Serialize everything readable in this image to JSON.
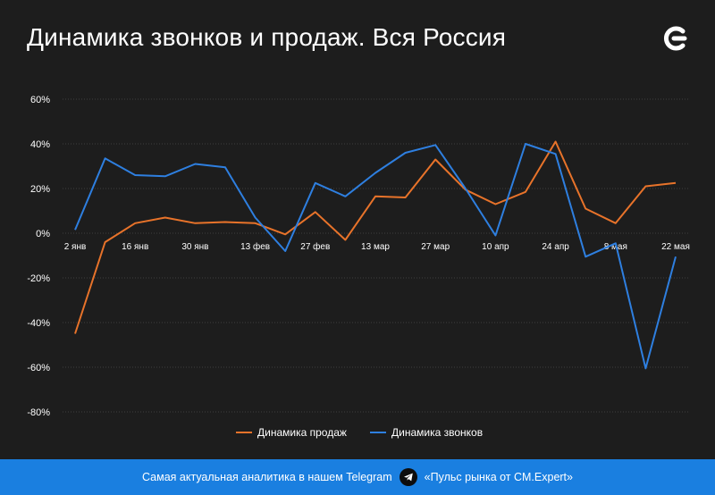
{
  "header": {
    "title": "Динамика звонков и продаж. Вся Россия",
    "logo_icon": "cmexpert-logo-icon"
  },
  "footer": {
    "text_left": "Самая актуальная аналитика в нашем Telegram",
    "icon": "telegram-icon",
    "text_right": "«Пульс рынка от CM.Expert»"
  },
  "colors": {
    "sales": "#e8732a",
    "calls": "#2e7fe0",
    "background": "#1d1d1d",
    "footer": "#1a7fe0"
  },
  "chart_data": {
    "type": "line",
    "title": "Динамика звонков и продаж. Вся Россия",
    "xlabel": "",
    "ylabel": "",
    "ylim": [
      -80,
      60
    ],
    "grid": true,
    "legend_position": "bottom-center",
    "x_ticks": [
      "2 янв",
      "16 янв",
      "30 янв",
      "13 фев",
      "27 фев",
      "13 мар",
      "27 мар",
      "10 апр",
      "24 апр",
      "8 мая",
      "22 мая"
    ],
    "y_ticks": [
      "60%",
      "40%",
      "20%",
      "0%",
      "-20%",
      "-40%",
      "-60%",
      "-80%"
    ],
    "y_tick_values": [
      60,
      40,
      20,
      0,
      -20,
      -40,
      -60,
      -80
    ],
    "x": [
      "2 янв",
      "9 янв",
      "16 янв",
      "23 янв",
      "30 янв",
      "6 фев",
      "13 фев",
      "20 фев",
      "27 фев",
      "6 мар",
      "13 мар",
      "20 мар",
      "27 мар",
      "3 апр",
      "10 апр",
      "17 апр",
      "24 апр",
      "1 мая",
      "8 мая",
      "15 мая",
      "22 мая"
    ],
    "series": [
      {
        "name": "Динамика продаж",
        "color": "#e8732a",
        "values": [
          -45,
          -4,
          4.5,
          7,
          4.5,
          5,
          4.5,
          -0.5,
          9.5,
          -3,
          16.5,
          16,
          33,
          19.5,
          13,
          18.5,
          41,
          11,
          4.5,
          21,
          22.5
        ]
      },
      {
        "name": "Динамика звонков",
        "color": "#2e7fe0",
        "values": [
          1.5,
          33.5,
          26,
          25.5,
          31,
          29.5,
          7,
          -8,
          22.5,
          16.5,
          27,
          36,
          39.5,
          20,
          -1,
          40,
          35.5,
          -10.5,
          -4.5,
          -60.5,
          -10.5
        ]
      }
    ]
  }
}
